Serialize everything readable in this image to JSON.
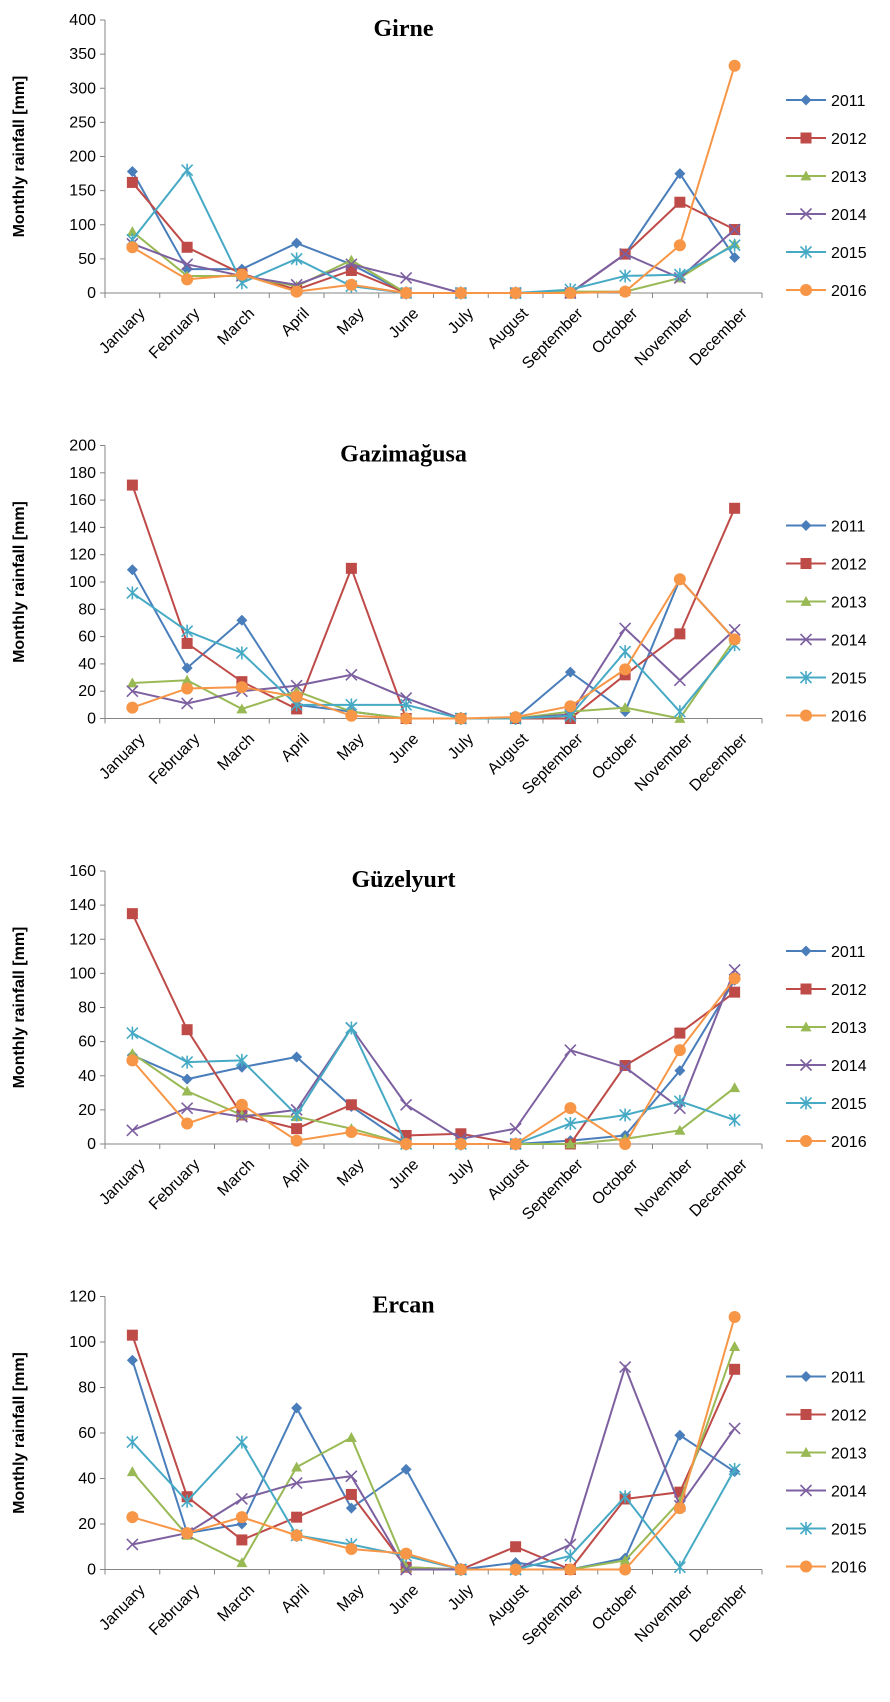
{
  "chart_data": [
    {
      "type": "line",
      "title": "Girne",
      "y_label": "Monthly rainfall [mm]",
      "categories": [
        "January",
        "February",
        "March",
        "April",
        "May",
        "June",
        "July",
        "August",
        "September",
        "October",
        "November",
        "December"
      ],
      "ylim": [
        0,
        400
      ],
      "yticks": [
        0,
        50,
        100,
        150,
        200,
        250,
        300,
        350,
        400
      ],
      "series": [
        {
          "name": "2011",
          "color": "#4a7ebb",
          "marker": "diamond",
          "values": [
            178,
            35,
            35,
            73,
            42,
            0,
            0,
            0,
            0,
            57,
            175,
            52
          ]
        },
        {
          "name": "2012",
          "color": "#be4b48",
          "marker": "square",
          "values": [
            162,
            67,
            28,
            5,
            33,
            0,
            0,
            0,
            0,
            57,
            133,
            93
          ]
        },
        {
          "name": "2013",
          "color": "#98b954",
          "marker": "triangle",
          "values": [
            90,
            25,
            25,
            10,
            48,
            0,
            0,
            0,
            2,
            2,
            22,
            72
          ]
        },
        {
          "name": "2014",
          "color": "#7d60a0",
          "marker": "x",
          "values": [
            72,
            42,
            25,
            12,
            42,
            22,
            0,
            0,
            0,
            57,
            22,
            93
          ]
        },
        {
          "name": "2015",
          "color": "#46aac5",
          "marker": "star",
          "values": [
            78,
            180,
            15,
            50,
            10,
            0,
            0,
            0,
            5,
            25,
            27,
            70
          ]
        },
        {
          "name": "2016",
          "color": "#f79646",
          "marker": "circle",
          "values": [
            67,
            20,
            27,
            2,
            12,
            0,
            0,
            0,
            0,
            2,
            70,
            333
          ]
        }
      ]
    },
    {
      "type": "line",
      "title": "Gazimağusa",
      "y_label": "Monthly rainfall [mm]",
      "categories": [
        "January",
        "February",
        "March",
        "April",
        "May",
        "June",
        "July",
        "August",
        "September",
        "October",
        "November",
        "December"
      ],
      "ylim": [
        0,
        200
      ],
      "yticks": [
        0,
        20,
        40,
        60,
        80,
        100,
        120,
        140,
        160,
        180,
        200
      ],
      "series": [
        {
          "name": "2011",
          "color": "#4a7ebb",
          "marker": "diamond",
          "values": [
            109,
            37,
            72,
            10,
            5,
            0,
            0,
            0,
            34,
            5,
            102,
            58
          ]
        },
        {
          "name": "2012",
          "color": "#be4b48",
          "marker": "square",
          "values": [
            171,
            55,
            27,
            7,
            110,
            0,
            0,
            0,
            0,
            32,
            62,
            154
          ]
        },
        {
          "name": "2013",
          "color": "#98b954",
          "marker": "triangle",
          "values": [
            26,
            28,
            7,
            20,
            5,
            0,
            0,
            0,
            5,
            8,
            0,
            58
          ]
        },
        {
          "name": "2014",
          "color": "#7d60a0",
          "marker": "x",
          "values": [
            20,
            11,
            20,
            24,
            32,
            15,
            0,
            0,
            3,
            66,
            28,
            65
          ]
        },
        {
          "name": "2015",
          "color": "#46aac5",
          "marker": "star",
          "values": [
            92,
            64,
            48,
            10,
            10,
            10,
            0,
            0,
            2,
            49,
            5,
            54
          ]
        },
        {
          "name": "2016",
          "color": "#f79646",
          "marker": "circle",
          "values": [
            8,
            22,
            23,
            16,
            2,
            0,
            0,
            1,
            9,
            36,
            102,
            58
          ]
        }
      ]
    },
    {
      "type": "line",
      "title": "Güzelyurt",
      "y_label": "Monthly rainfall [mm]",
      "categories": [
        "January",
        "February",
        "March",
        "April",
        "May",
        "June",
        "July",
        "August",
        "September",
        "October",
        "November",
        "December"
      ],
      "ylim": [
        0,
        160
      ],
      "yticks": [
        0,
        20,
        40,
        60,
        80,
        100,
        120,
        140,
        160
      ],
      "series": [
        {
          "name": "2011",
          "color": "#4a7ebb",
          "marker": "diamond",
          "values": [
            52,
            38,
            45,
            51,
            22,
            0,
            0,
            0,
            2,
            5,
            43,
            96
          ]
        },
        {
          "name": "2012",
          "color": "#be4b48",
          "marker": "square",
          "values": [
            135,
            67,
            17,
            9,
            23,
            5,
            6,
            0,
            0,
            46,
            65,
            89
          ]
        },
        {
          "name": "2013",
          "color": "#98b954",
          "marker": "triangle",
          "values": [
            53,
            31,
            17,
            16,
            9,
            0,
            0,
            0,
            0,
            3,
            8,
            33
          ]
        },
        {
          "name": "2014",
          "color": "#7d60a0",
          "marker": "x",
          "values": [
            8,
            21,
            16,
            20,
            68,
            23,
            3,
            9,
            55,
            45,
            21,
            102
          ]
        },
        {
          "name": "2015",
          "color": "#46aac5",
          "marker": "star",
          "values": [
            65,
            48,
            49,
            17,
            68,
            0,
            0,
            0,
            12,
            17,
            25,
            14
          ]
        },
        {
          "name": "2016",
          "color": "#f79646",
          "marker": "circle",
          "values": [
            49,
            12,
            23,
            2,
            7,
            0,
            0,
            0,
            21,
            0,
            55,
            97
          ]
        }
      ]
    },
    {
      "type": "line",
      "title": "Ercan",
      "y_label": "Monthly rainfall [mm]",
      "categories": [
        "January",
        "February",
        "March",
        "April",
        "May",
        "June",
        "July",
        "August",
        "September",
        "October",
        "November",
        "December"
      ],
      "ylim": [
        0,
        120
      ],
      "yticks": [
        0,
        20,
        40,
        60,
        80,
        100,
        120
      ],
      "series": [
        {
          "name": "2011",
          "color": "#4a7ebb",
          "marker": "diamond",
          "values": [
            92,
            16,
            20,
            71,
            27,
            44,
            0,
            3,
            0,
            5,
            59,
            43
          ]
        },
        {
          "name": "2012",
          "color": "#be4b48",
          "marker": "square",
          "values": [
            103,
            32,
            13,
            23,
            33,
            1,
            0,
            10,
            0,
            31,
            34,
            88
          ]
        },
        {
          "name": "2013",
          "color": "#98b954",
          "marker": "triangle",
          "values": [
            43,
            15,
            3,
            45,
            58,
            1,
            0,
            0,
            0,
            4,
            30,
            98
          ]
        },
        {
          "name": "2014",
          "color": "#7d60a0",
          "marker": "x",
          "values": [
            11,
            16,
            31,
            38,
            41,
            0,
            0,
            0,
            11,
            89,
            28,
            62
          ]
        },
        {
          "name": "2015",
          "color": "#46aac5",
          "marker": "star",
          "values": [
            56,
            30,
            56,
            15,
            11,
            6,
            0,
            0,
            6,
            32,
            1,
            44
          ]
        },
        {
          "name": "2016",
          "color": "#f79646",
          "marker": "circle",
          "values": [
            23,
            16,
            23,
            15,
            9,
            7,
            0,
            0,
            0,
            0,
            27,
            111
          ]
        }
      ]
    }
  ]
}
